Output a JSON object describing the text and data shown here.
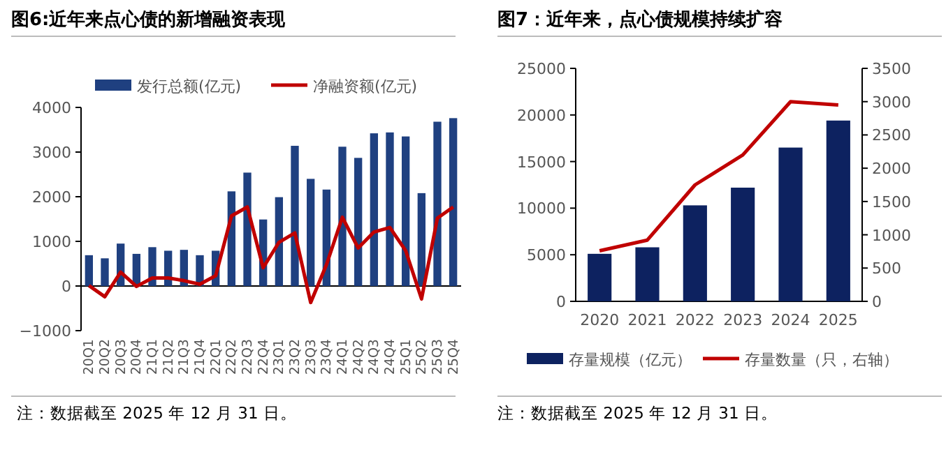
{
  "chart_data": [
    {
      "type": "bar",
      "title": "图6:近年来点心债的新增融资表现",
      "categories": [
        "20Q1",
        "20Q2",
        "20Q3",
        "20Q4",
        "21Q1",
        "21Q2",
        "21Q3",
        "21Q4",
        "22Q1",
        "22Q2",
        "22Q3",
        "22Q4",
        "23Q1",
        "23Q2",
        "23Q3",
        "23Q4",
        "24Q1",
        "24Q2",
        "24Q3",
        "24Q4",
        "25Q1",
        "25Q2",
        "25Q3",
        "25Q4"
      ],
      "series": [
        {
          "name": "发行总额(亿元)",
          "color": "#1f4080",
          "values": [
            690,
            620,
            950,
            720,
            870,
            790,
            810,
            690,
            790,
            2120,
            2540,
            1490,
            1990,
            3140,
            2400,
            2160,
            3120,
            2870,
            3420,
            3440,
            3350,
            2080,
            3680,
            3760
          ]
        },
        {
          "name": "净融资额(亿元)",
          "type": "line",
          "color": "#c00000",
          "values": [
            10,
            -240,
            310,
            -10,
            180,
            180,
            120,
            40,
            230,
            1570,
            1770,
            410,
            980,
            1190,
            -370,
            480,
            1540,
            850,
            1210,
            1310,
            790,
            -290,
            1520,
            1770
          ]
        }
      ],
      "ylim": [
        -1000,
        4000
      ],
      "yticks": [
        -1000,
        0,
        1000,
        2000,
        3000,
        4000
      ],
      "legend": "top",
      "marker": "none",
      "annotations": [
        "注：数据截至 2025 年 12 月 31 日。"
      ]
    },
    {
      "type": "bar",
      "title": "图7：近年来，点心债规模持续扩容",
      "categories": [
        "2020",
        "2021",
        "2022",
        "2023",
        "2024",
        "2025"
      ],
      "series": [
        {
          "name": "存量规模（亿元）",
          "color": "#0d2260",
          "values": [
            5100,
            5800,
            10300,
            12200,
            16500,
            19400
          ]
        },
        {
          "name": "存量数量（只，右轴）",
          "type": "line",
          "axis": "y2",
          "color": "#c00000",
          "values": [
            760,
            920,
            1750,
            2200,
            3000,
            2950
          ]
        }
      ],
      "ylim": [
        0,
        25000
      ],
      "yticks": [
        0,
        5000,
        10000,
        15000,
        20000,
        25000
      ],
      "y2lim": [
        0,
        3500
      ],
      "y2ticks": [
        0,
        500,
        1000,
        1500,
        2000,
        2500,
        3000,
        3500
      ],
      "legend": "bottom",
      "marker": "none",
      "annotations": [
        "注：数据截至 2025 年 12 月 31 日。"
      ]
    }
  ]
}
